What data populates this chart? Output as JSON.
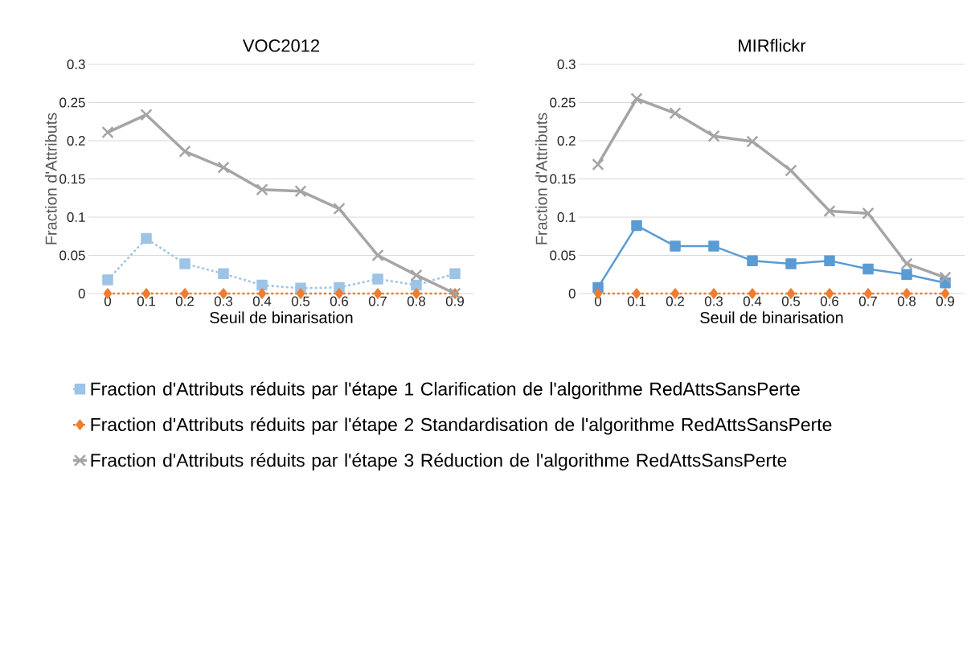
{
  "chart_data": [
    {
      "type": "line",
      "title": "VOC2012",
      "xlabel": "Seuil de binarisation",
      "ylabel": "Fraction d'Attributs",
      "categories": [
        "0",
        "0.1",
        "0.2",
        "0.3",
        "0.4",
        "0.5",
        "0.6",
        "0.7",
        "0.8",
        "0.9"
      ],
      "ylim": [
        0,
        0.3
      ],
      "yticks": [
        0,
        0.05,
        0.1,
        0.15,
        0.2,
        0.25,
        0.3
      ],
      "grid": "y",
      "legend": "bottom",
      "series": [
        {
          "name": "Fraction d'Attributs réduits par l'étape 1 Clarification de l'algorithme RedAttsSansPerte",
          "color": "#9dc3e6",
          "marker": "square",
          "line_style": "dashed",
          "values": [
            0.018,
            0.072,
            0.039,
            0.026,
            0.011,
            0.007,
            0.008,
            0.019,
            0.011,
            0.026
          ]
        },
        {
          "name": "Fraction d'Attributs réduits par l'étape 2 Standardisation de l'algorithme RedAttsSansPerte",
          "color": "#ed7d31",
          "marker": "diamond",
          "line_style": "dashed",
          "values": [
            0,
            0,
            0,
            0,
            0,
            0,
            0,
            0,
            0,
            0
          ]
        },
        {
          "name": "Fraction d'Attributs réduits par l'étape 3 Réduction de l'algorithme RedAttsSansPerte",
          "color": "#a5a5a5",
          "marker": "cross",
          "line_style": "solid",
          "values": [
            0.211,
            0.234,
            0.186,
            0.165,
            0.136,
            0.134,
            0.111,
            0.05,
            0.024,
            0
          ]
        }
      ]
    },
    {
      "type": "line",
      "title": "MIRflickr",
      "xlabel": "Seuil de binarisation",
      "ylabel": "Fraction d'Attributs",
      "categories": [
        "0",
        "0.1",
        "0.2",
        "0.3",
        "0.4",
        "0.5",
        "0.6",
        "0.7",
        "0.8",
        "0.9"
      ],
      "ylim": [
        0,
        0.3
      ],
      "yticks": [
        0,
        0.05,
        0.1,
        0.15,
        0.2,
        0.25,
        0.3
      ],
      "grid": "y",
      "series": [
        {
          "color": "#5b9bd5",
          "marker": "square",
          "line_style": "solid",
          "values": [
            0.008,
            0.089,
            0.062,
            0.062,
            0.043,
            0.039,
            0.043,
            0.032,
            0.025,
            0.014
          ]
        },
        {
          "color": "#ed7d31",
          "marker": "diamond",
          "line_style": "dashed",
          "values": [
            0,
            0,
            0,
            0,
            0,
            0,
            0,
            0,
            0,
            0
          ]
        },
        {
          "color": "#a5a5a5",
          "marker": "cross",
          "line_style": "solid",
          "values": [
            0.169,
            0.255,
            0.236,
            0.206,
            0.199,
            0.161,
            0.108,
            0.105,
            0.039,
            0.021
          ]
        }
      ]
    }
  ]
}
